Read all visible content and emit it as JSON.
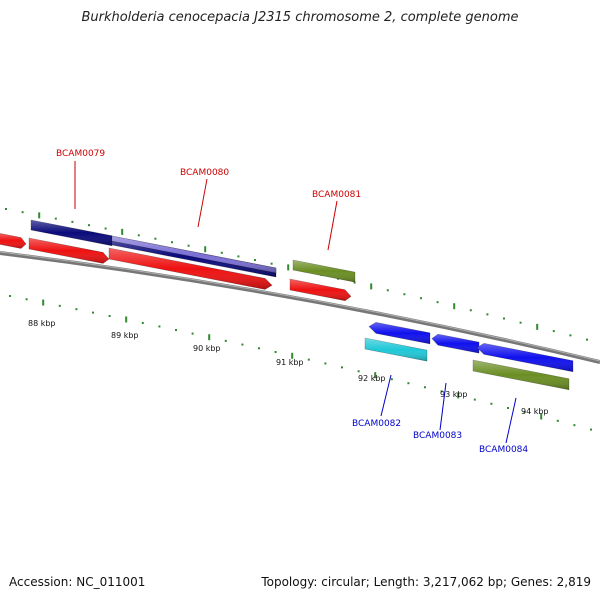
{
  "title": "Burkholderia cenocepacia J2315 chromosome 2, complete genome",
  "footer": {
    "accession_label": "Accession:",
    "accession": "NC_011001",
    "topology_label": "Topology:",
    "topology": "circular",
    "length_label": "Length:",
    "length": "3,217,062 bp",
    "genes_label": "Genes:",
    "genes": "2,819"
  },
  "colors": {
    "backbone": "#808080",
    "tick": "#2e8b2e",
    "forward_label": "#cc0000",
    "reverse_label": "#0000cc",
    "red": "#ee1111",
    "navy": "#0a0a7a",
    "lavender": "#7b6fd6",
    "olive": "#6b8e23",
    "blue": "#1010ee",
    "cyan": "#20c8d8"
  },
  "scale_labels": [
    "88 kbp",
    "89 kbp",
    "90 kbp",
    "91 kbp",
    "92 kbp",
    "93 kbp",
    "94 kbp"
  ],
  "genes": [
    {
      "name": "BCAM0079",
      "strand": "forward"
    },
    {
      "name": "BCAM0080",
      "strand": "forward"
    },
    {
      "name": "BCAM0081",
      "strand": "forward"
    },
    {
      "name": "BCAM0082",
      "strand": "reverse"
    },
    {
      "name": "BCAM0083",
      "strand": "reverse"
    },
    {
      "name": "BCAM0084",
      "strand": "reverse"
    }
  ]
}
